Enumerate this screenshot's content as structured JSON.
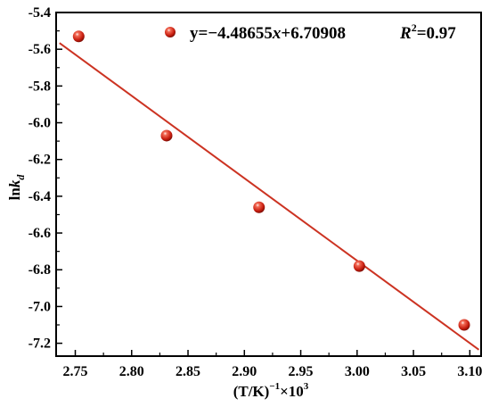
{
  "chart_data": {
    "type": "scatter",
    "xlabel_main": "(T/K)",
    "xlabel_sup1": "−1",
    "xlabel_times": "×10",
    "xlabel_sup2": "3",
    "ylabel_main": "ln",
    "ylabel_italic": "k",
    "ylabel_sub": "d",
    "xlim": [
      2.733,
      3.11
    ],
    "ylim": [
      -7.27,
      -5.4
    ],
    "xticks": [
      "2.75",
      "2.80",
      "2.85",
      "2.90",
      "2.95",
      "3.00",
      "3.05",
      "3.10"
    ],
    "xtick_values": [
      2.75,
      2.8,
      2.85,
      2.9,
      2.95,
      3.0,
      3.05,
      3.1
    ],
    "yticks": [
      "-5.4",
      "-5.6",
      "-5.8",
      "-6.0",
      "-6.2",
      "-6.4",
      "-6.6",
      "-6.8",
      "-7.0",
      "-7.2"
    ],
    "ytick_values": [
      -5.4,
      -5.6,
      -5.8,
      -6.0,
      -6.2,
      -6.4,
      -6.6,
      -6.8,
      -7.0,
      -7.2
    ],
    "points": [
      {
        "x": 2.753,
        "y": -5.53
      },
      {
        "x": 2.831,
        "y": -6.07
      },
      {
        "x": 2.913,
        "y": -6.46
      },
      {
        "x": 3.002,
        "y": -6.78
      },
      {
        "x": 3.095,
        "y": -7.1
      }
    ],
    "fit": {
      "slope": -4.48655,
      "intercept": 6.70908,
      "x_range": [
        2.736,
        3.108
      ]
    },
    "legend": {
      "eq_prefix": "y=−4.48655",
      "eq_var": "x",
      "eq_suffix": "+6.70908",
      "r2_var": "R",
      "r2_sup": "2",
      "r2_value": "=0.97"
    },
    "point_color": "#d42a1e",
    "line_color": "#cc3322",
    "grid": false
  }
}
